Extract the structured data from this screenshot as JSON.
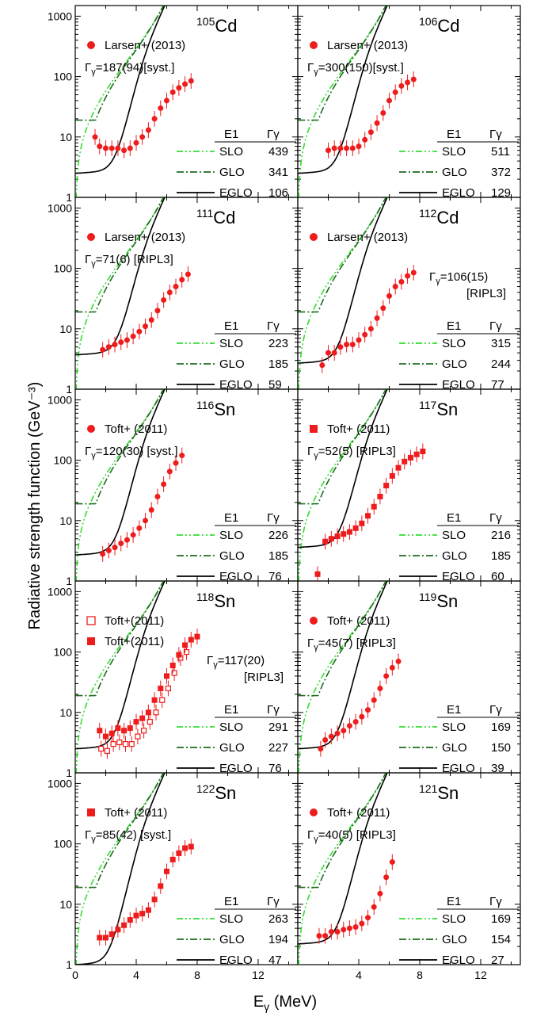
{
  "figure": {
    "ylabel": "Radiative strength function (GeV⁻³)",
    "xlabel_main": "E",
    "xlabel_sub": "γ",
    "xlabel_unit": " (MeV)",
    "legend_hdr": [
      "E1",
      "Γγ"
    ],
    "model_names": [
      "SLO",
      "GLO",
      "EGLO"
    ],
    "colors": {
      "SLO": "#33dd33",
      "GLO": "#1f6b1f",
      "EGLO": "#000000",
      "data": "#ee1c1c"
    }
  },
  "chart_data": [
    {
      "type": "scatter",
      "nucleus_mass": "105",
      "nucleus_symbol": "Cd",
      "series": [
        {
          "name": "Larsen+ (2013)",
          "marker": "circle",
          "x": [
            1.3,
            1.6,
            2.0,
            2.4,
            2.8,
            3.2,
            3.6,
            4.0,
            4.4,
            4.8,
            5.2,
            5.6,
            6.0,
            6.4,
            6.8,
            7.2,
            7.6
          ],
          "y": [
            10,
            7,
            6.5,
            6.5,
            6.5,
            6,
            6.5,
            8,
            10,
            13,
            20,
            30,
            40,
            55,
            65,
            75,
            85
          ]
        }
      ],
      "gamma_ann_pre": "Γ",
      "gamma_ann_sub": "γ",
      "gamma_ann_post": "=187(94)[syst.]",
      "models": [
        {
          "name": "SLO",
          "gamma": "439"
        },
        {
          "name": "GLO",
          "gamma": "341"
        },
        {
          "name": "EGLO",
          "gamma": "106"
        }
      ],
      "eglo_low": 2.5
    },
    {
      "type": "scatter",
      "nucleus_mass": "106",
      "nucleus_symbol": "Cd",
      "series": [
        {
          "name": "Larsen+ (2013)",
          "marker": "circle",
          "x": [
            2.0,
            2.4,
            2.8,
            3.2,
            3.6,
            4.0,
            4.4,
            4.8,
            5.2,
            5.6,
            6.0,
            6.4,
            6.8,
            7.2,
            7.6
          ],
          "y": [
            6,
            6.5,
            6.5,
            6.5,
            6.5,
            7,
            9,
            12,
            17,
            25,
            40,
            55,
            70,
            80,
            90
          ]
        }
      ],
      "gamma_ann_pre": "Γ",
      "gamma_ann_sub": "γ",
      "gamma_ann_post": "=300(150)[syst.]",
      "models": [
        {
          "name": "SLO",
          "gamma": "511"
        },
        {
          "name": "GLO",
          "gamma": "372"
        },
        {
          "name": "EGLO",
          "gamma": "129"
        }
      ],
      "eglo_low": 2.5
    },
    {
      "type": "scatter",
      "nucleus_mass": "111",
      "nucleus_symbol": "Cd",
      "series": [
        {
          "name": "Larsen+ (2013)",
          "marker": "circle",
          "x": [
            1.8,
            2.2,
            2.6,
            3.0,
            3.4,
            3.8,
            4.2,
            4.6,
            5.0,
            5.4,
            5.8,
            6.2,
            6.6,
            7.0,
            7.4
          ],
          "y": [
            4.5,
            5,
            5.5,
            6,
            6.5,
            7.5,
            9,
            11,
            14,
            20,
            30,
            40,
            50,
            65,
            80
          ]
        }
      ],
      "gamma_ann_pre": "Γ",
      "gamma_ann_sub": "γ",
      "gamma_ann_post": "=71(6) [RIPL3]",
      "models": [
        {
          "name": "SLO",
          "gamma": "223"
        },
        {
          "name": "GLO",
          "gamma": "185"
        },
        {
          "name": "EGLO",
          "gamma": "59"
        }
      ],
      "eglo_low": 3.7
    },
    {
      "type": "scatter",
      "nucleus_mass": "112",
      "nucleus_symbol": "Cd",
      "series": [
        {
          "name": "Larsen+ (2013)",
          "marker": "circle",
          "x": [
            1.6,
            2.0,
            2.4,
            2.8,
            3.2,
            3.6,
            4.0,
            4.4,
            4.8,
            5.2,
            5.6,
            6.0,
            6.4,
            6.8,
            7.2,
            7.6
          ],
          "y": [
            2.5,
            4,
            4,
            5,
            5.5,
            5.5,
            6.5,
            8,
            10,
            15,
            22,
            35,
            50,
            60,
            75,
            85
          ]
        }
      ],
      "gamma_ann_pre": "Γ",
      "gamma_ann_sub": "γ",
      "gamma_ann_post": "=106(15)",
      "gamma_ann_line2": "[RIPL3]",
      "models": [
        {
          "name": "SLO",
          "gamma": "315"
        },
        {
          "name": "GLO",
          "gamma": "244"
        },
        {
          "name": "EGLO",
          "gamma": "77"
        }
      ],
      "eglo_low": 2.7
    },
    {
      "type": "scatter",
      "nucleus_mass": "116",
      "nucleus_symbol": "Sn",
      "series": [
        {
          "name": "Toft+ (2011)",
          "marker": "circle",
          "x": [
            1.8,
            2.2,
            2.6,
            3.0,
            3.4,
            3.8,
            4.2,
            4.6,
            5.0,
            5.4,
            5.8,
            6.2,
            6.6,
            7.0
          ],
          "y": [
            2.8,
            3.2,
            3.6,
            4.2,
            4.8,
            5.8,
            7.5,
            10,
            15,
            25,
            40,
            65,
            90,
            120
          ]
        }
      ],
      "gamma_ann_pre": "Γ",
      "gamma_ann_sub": "γ",
      "gamma_ann_post": "=120(30) [syst.]",
      "models": [
        {
          "name": "SLO",
          "gamma": "226"
        },
        {
          "name": "GLO",
          "gamma": "185"
        },
        {
          "name": "EGLO",
          "gamma": "76"
        }
      ],
      "eglo_low": 2.7
    },
    {
      "type": "scatter",
      "nucleus_mass": "117",
      "nucleus_symbol": "Sn",
      "series": [
        {
          "name": "Toft+ (2011)",
          "marker": "square",
          "x": [
            1.3,
            1.8,
            2.2,
            2.6,
            3.0,
            3.4,
            3.8,
            4.2,
            4.6,
            5.0,
            5.4,
            5.8,
            6.2,
            6.6,
            7.0,
            7.4,
            7.8,
            8.2
          ],
          "y": [
            1.3,
            4.5,
            5,
            5.5,
            6,
            6.5,
            7.5,
            9,
            12,
            17,
            25,
            38,
            55,
            75,
            95,
            110,
            125,
            140
          ]
        }
      ],
      "gamma_ann_pre": "Γ",
      "gamma_ann_sub": "γ",
      "gamma_ann_post": "=52(5) [RIPL3]",
      "models": [
        {
          "name": "SLO",
          "gamma": "216"
        },
        {
          "name": "GLO",
          "gamma": "185"
        },
        {
          "name": "EGLO",
          "gamma": "60"
        }
      ],
      "eglo_low": 3.6
    },
    {
      "type": "scatter",
      "nucleus_mass": "118",
      "nucleus_symbol": "Sn",
      "series": [
        {
          "name": "Toft+(2011)",
          "marker": "open-square",
          "x": [
            1.7,
            2.1,
            2.5,
            2.9,
            3.3,
            3.7,
            4.1,
            4.5,
            4.9,
            5.3,
            5.7,
            6.1,
            6.5,
            6.9,
            7.3
          ],
          "y": [
            2.5,
            2.3,
            3,
            3.2,
            3,
            3,
            4,
            5,
            7,
            10,
            16,
            25,
            45,
            80,
            100
          ]
        },
        {
          "name": "Toft+(2011)",
          "marker": "square",
          "x": [
            1.6,
            2.0,
            2.4,
            2.8,
            3.2,
            3.6,
            4.0,
            4.4,
            4.8,
            5.2,
            5.6,
            6.0,
            6.4,
            6.8,
            7.2,
            7.6,
            8.0
          ],
          "y": [
            5,
            4,
            4.5,
            5.5,
            5,
            5.5,
            7,
            8,
            10,
            16,
            25,
            40,
            60,
            90,
            130,
            160,
            180
          ]
        }
      ],
      "gamma_ann_pre": "Γ",
      "gamma_ann_sub": "γ",
      "gamma_ann_post": "=117(20)",
      "gamma_ann_line2": "[RIPL3]",
      "models": [
        {
          "name": "SLO",
          "gamma": "291"
        },
        {
          "name": "GLO",
          "gamma": "227"
        },
        {
          "name": "EGLO",
          "gamma": "76"
        }
      ],
      "eglo_low": 2.5
    },
    {
      "type": "scatter",
      "nucleus_mass": "119",
      "nucleus_symbol": "Sn",
      "series": [
        {
          "name": "Toft+ (2011)",
          "marker": "circle",
          "x": [
            1.5,
            1.8,
            2.2,
            2.6,
            3.0,
            3.4,
            3.8,
            4.2,
            4.6,
            5.0,
            5.4,
            5.8,
            6.2,
            6.6
          ],
          "y": [
            2.5,
            3.5,
            4,
            4.5,
            5,
            6,
            7,
            8.5,
            11,
            16,
            25,
            40,
            55,
            70
          ]
        }
      ],
      "gamma_ann_pre": "Γ",
      "gamma_ann_sub": "γ",
      "gamma_ann_post": "=45(7) [RIPL3]",
      "models": [
        {
          "name": "SLO",
          "gamma": "169"
        },
        {
          "name": "GLO",
          "gamma": "150"
        },
        {
          "name": "EGLO",
          "gamma": "39"
        }
      ],
      "eglo_low": 2.5
    },
    {
      "type": "scatter",
      "nucleus_mass": "122",
      "nucleus_symbol": "Sn",
      "series": [
        {
          "name": "Toft+ (2011)",
          "marker": "square",
          "x": [
            1.6,
            2.0,
            2.4,
            2.8,
            3.2,
            3.6,
            4.0,
            4.4,
            4.8,
            5.2,
            5.6,
            6.0,
            6.4,
            6.8,
            7.2,
            7.6
          ],
          "y": [
            2.8,
            2.8,
            3.2,
            3.8,
            4.5,
            5.5,
            6.5,
            7,
            8,
            12,
            20,
            35,
            55,
            70,
            85,
            90
          ]
        }
      ],
      "gamma_ann_pre": "Γ",
      "gamma_ann_sub": "γ",
      "gamma_ann_post": "=85(42) [syst.]",
      "models": [
        {
          "name": "SLO",
          "gamma": "263"
        },
        {
          "name": "GLO",
          "gamma": "194"
        },
        {
          "name": "EGLO",
          "gamma": "47"
        }
      ],
      "eglo_low": 1.0
    },
    {
      "type": "scatter",
      "nucleus_mass": "121",
      "nucleus_symbol": "Sn",
      "series": [
        {
          "name": "Toft+ (2011)",
          "marker": "circle",
          "x": [
            1.4,
            1.8,
            2.2,
            2.6,
            3.0,
            3.4,
            3.8,
            4.2,
            4.6,
            5.0,
            5.4,
            5.8,
            6.2
          ],
          "y": [
            3,
            3,
            3.5,
            3.5,
            3.8,
            4,
            4.2,
            4.8,
            6,
            9,
            15,
            28,
            50
          ]
        }
      ],
      "gamma_ann_pre": "Γ",
      "gamma_ann_sub": "γ",
      "gamma_ann_post": "=40(5) [RIPL3]",
      "models": [
        {
          "name": "SLO",
          "gamma": "169"
        },
        {
          "name": "GLO",
          "gamma": "154"
        },
        {
          "name": "EGLO",
          "gamma": "27"
        }
      ],
      "eglo_low": 2.2
    }
  ],
  "axes": {
    "xlim": [
      0,
      14.6
    ],
    "ylim": [
      1,
      1500
    ],
    "yscale": "log",
    "xticks": [
      "0",
      "4",
      "8",
      "12"
    ],
    "yticks": [
      "1",
      "10",
      "100",
      "1000"
    ]
  }
}
